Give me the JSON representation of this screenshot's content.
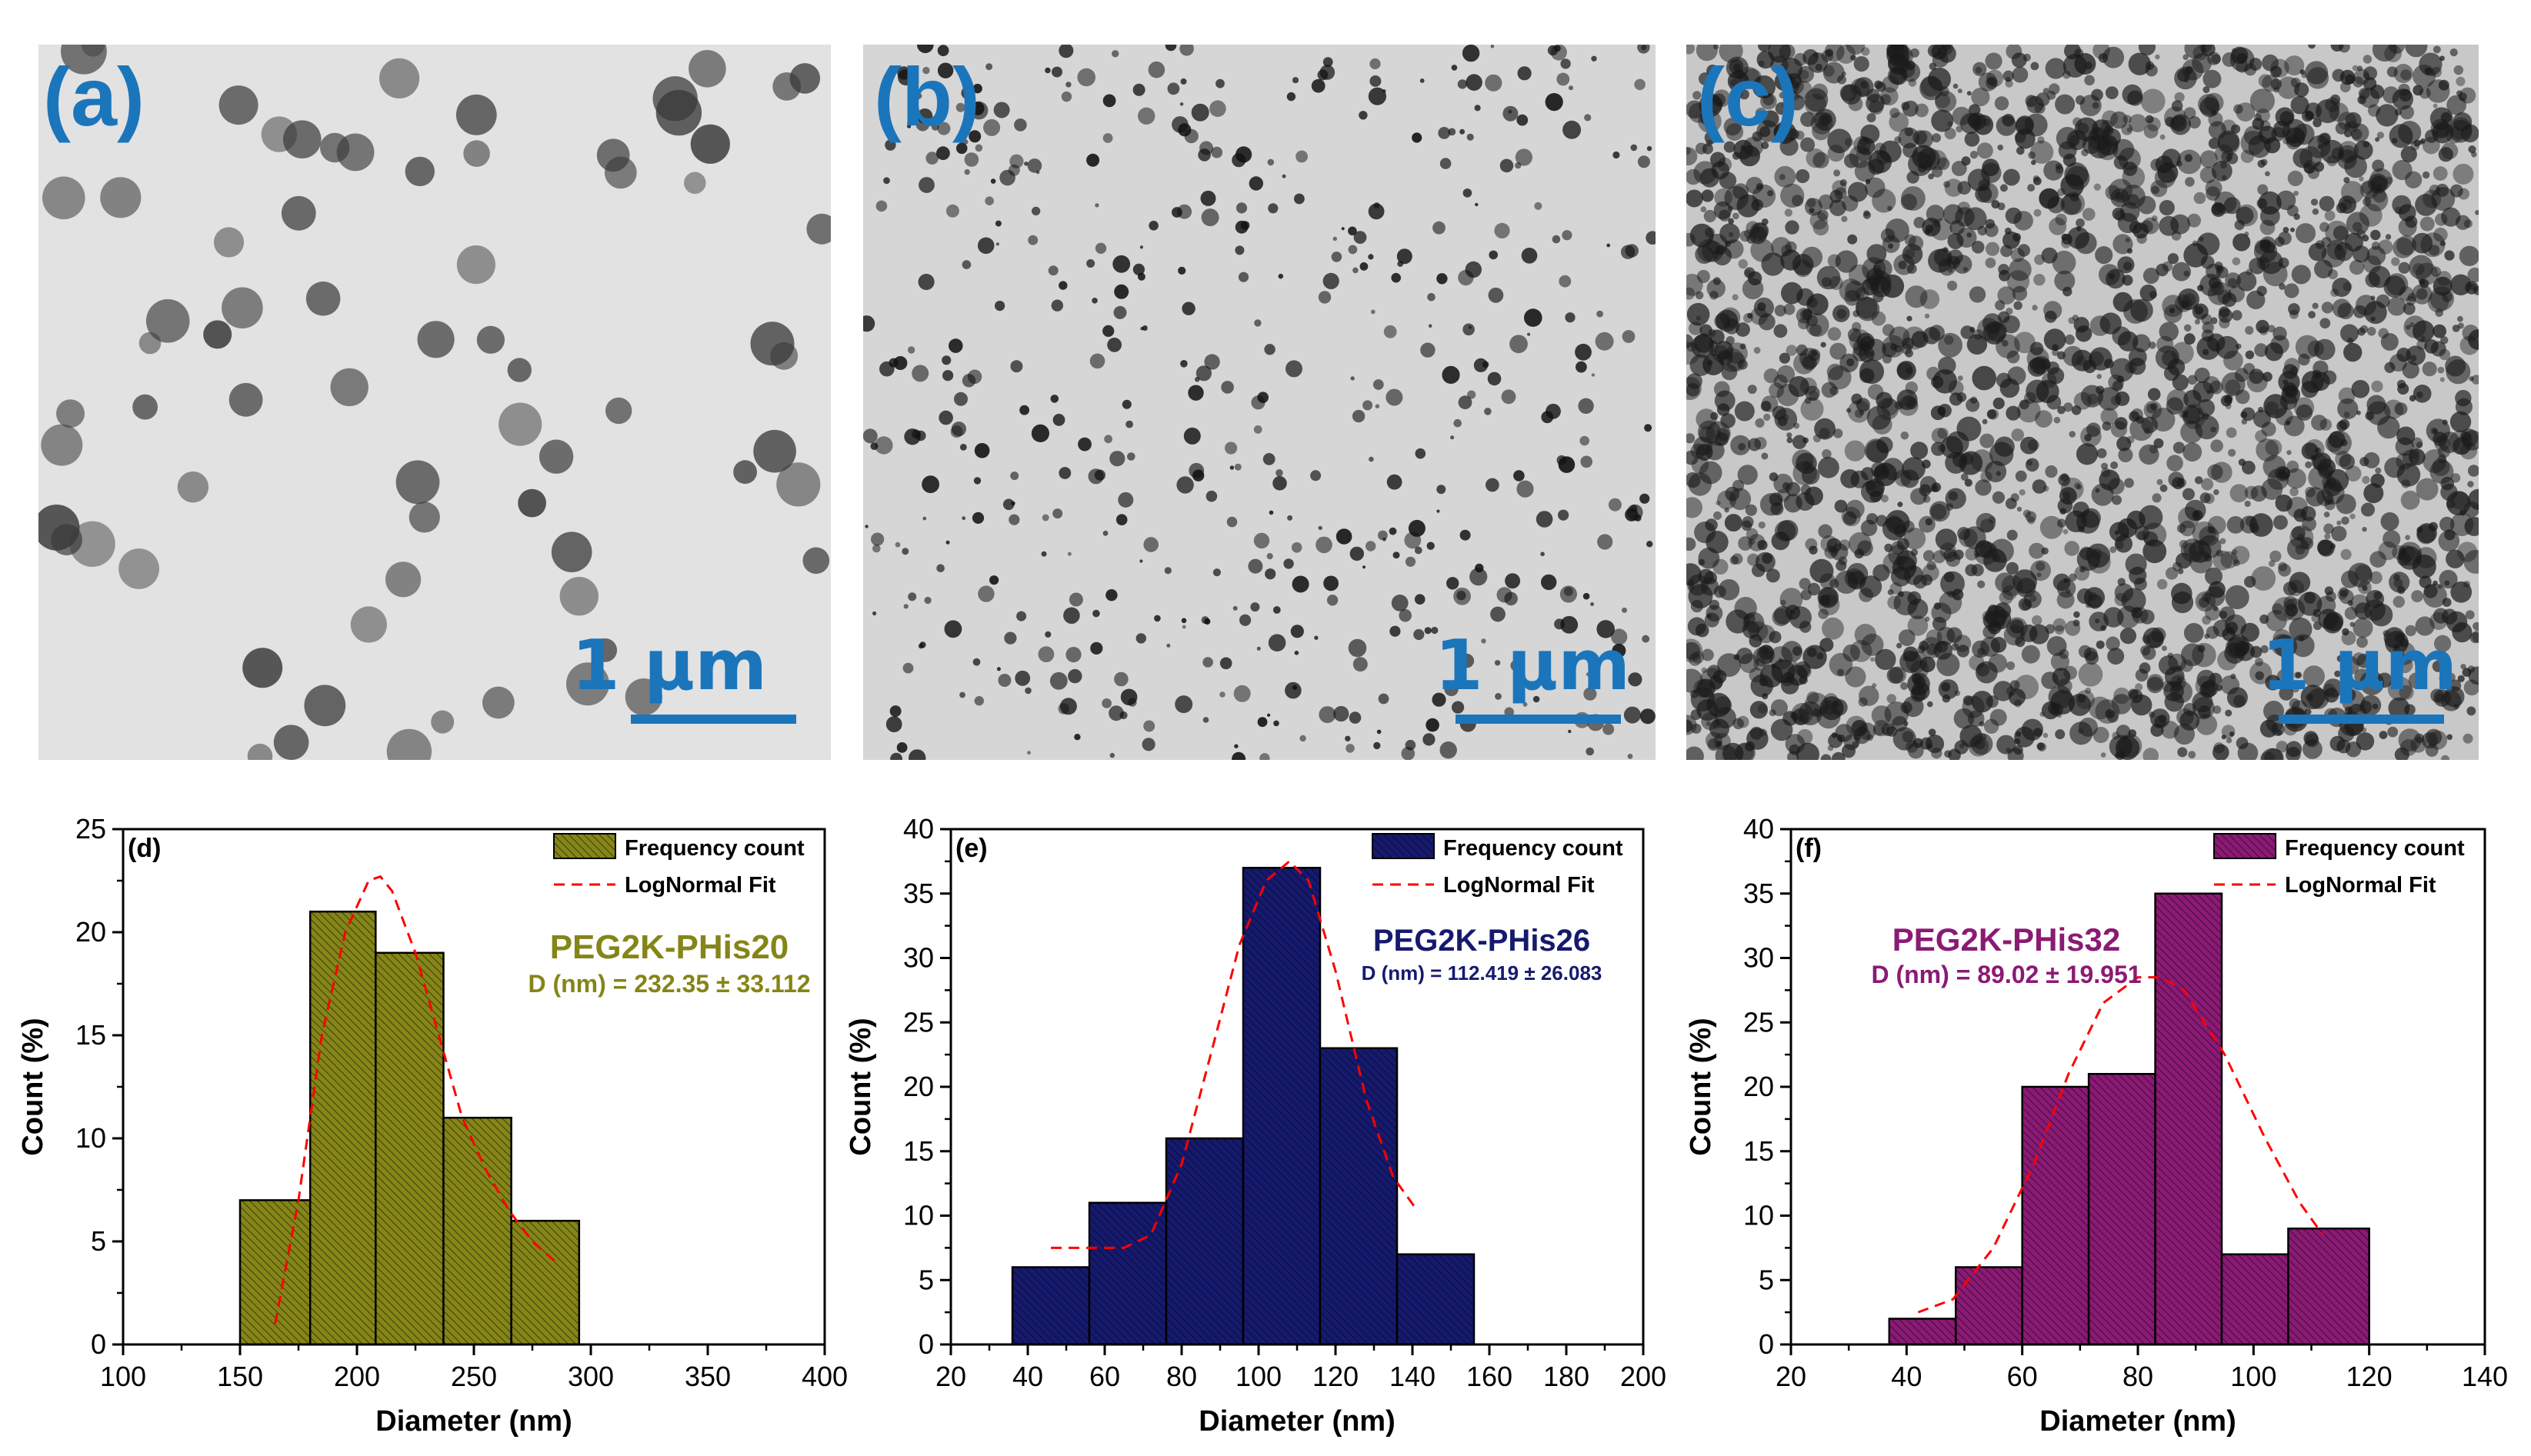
{
  "micrographs": [
    {
      "label": "(a)",
      "scale_text": "1 μm",
      "background": "#e2e2e2",
      "particle_color": "#3a3a3a"
    },
    {
      "label": "(b)",
      "scale_text": "1 μm",
      "background": "#d6d6d6",
      "particle_color": "#111111"
    },
    {
      "label": "(c)",
      "scale_text": "1 μm",
      "background": "#c8c8c8",
      "particle_color": "#1a1a1a"
    }
  ],
  "colors": {
    "label": "#1b75bb",
    "scalebar": "#1b75bb",
    "fit": "#ff0000"
  },
  "chart_data": [
    {
      "type": "bar",
      "panel_label": "(d)",
      "title": "PEG2K-PHis20",
      "annotation": "D (nm) = 232.35 ± 33.112",
      "xlabel": "Diameter (nm)",
      "ylabel": "Count (%)",
      "xlim": [
        100,
        400
      ],
      "xticks": [
        100,
        150,
        200,
        250,
        300,
        350,
        400
      ],
      "ylim": [
        0,
        25
      ],
      "yticks": [
        0,
        5,
        10,
        15,
        20,
        25
      ],
      "bin_edges": [
        150,
        180,
        208,
        237,
        266,
        295
      ],
      "values": [
        7,
        21,
        19,
        11,
        6
      ],
      "fit_x": [
        165,
        175,
        185,
        195,
        205,
        210,
        215,
        225,
        235,
        245,
        255,
        265,
        275,
        285
      ],
      "fit_y": [
        1,
        7,
        15,
        20,
        22.5,
        22.7,
        22,
        19,
        15,
        11,
        8.5,
        6.5,
        5,
        4
      ],
      "legend": [
        "Frequency count",
        "LogNormal Fit"
      ],
      "color": "#858518"
    },
    {
      "type": "bar",
      "panel_label": "(e)",
      "title": "PEG2K-PHis26",
      "annotation": "D (nm) = 112.419 ± 26.083",
      "xlabel": "Diameter (nm)",
      "ylabel": "Count (%)",
      "xlim": [
        20,
        200
      ],
      "xticks": [
        20,
        40,
        60,
        80,
        100,
        120,
        140,
        160,
        180,
        200
      ],
      "ylim": [
        0,
        40
      ],
      "yticks": [
        0,
        5,
        10,
        15,
        20,
        25,
        30,
        35,
        40
      ],
      "bin_edges": [
        36,
        56,
        76,
        96,
        116,
        136,
        156
      ],
      "values": [
        6,
        11,
        16,
        37,
        23,
        7
      ],
      "fit_x": [
        46,
        55,
        65,
        72,
        80,
        88,
        95,
        102,
        108,
        113,
        120,
        128,
        135,
        141
      ],
      "fit_y": [
        7.5,
        7.5,
        7.5,
        8.5,
        14,
        23,
        31,
        36,
        37.5,
        36,
        29,
        19,
        13,
        10.5
      ],
      "legend": [
        "Frequency count",
        "LogNormal Fit"
      ],
      "color": "#161a6e"
    },
    {
      "type": "bar",
      "panel_label": "(f)",
      "title": "PEG2K-PHis32",
      "annotation": "D (nm) = 89.02 ± 19.951",
      "xlabel": "Diameter (nm)",
      "ylabel": "Count (%)",
      "xlim": [
        20,
        140
      ],
      "xticks": [
        20,
        40,
        60,
        80,
        100,
        120,
        140
      ],
      "ylim": [
        0,
        40
      ],
      "yticks": [
        0,
        5,
        10,
        15,
        20,
        25,
        30,
        35,
        40
      ],
      "bin_edges": [
        37,
        48.5,
        60,
        71.5,
        83,
        94.5,
        106,
        120
      ],
      "values": [
        2,
        6,
        20,
        21,
        35,
        7,
        9
      ],
      "fit_x": [
        42,
        48,
        55,
        62,
        68,
        74,
        80,
        84,
        88,
        95,
        102,
        108,
        112
      ],
      "fit_y": [
        2.5,
        3.5,
        7.5,
        14,
        21,
        26.5,
        28.5,
        28.5,
        27.5,
        22.5,
        16,
        11,
        8.5
      ],
      "legend": [
        "Frequency count",
        "LogNormal Fit"
      ],
      "color": "#8a1a74"
    }
  ]
}
